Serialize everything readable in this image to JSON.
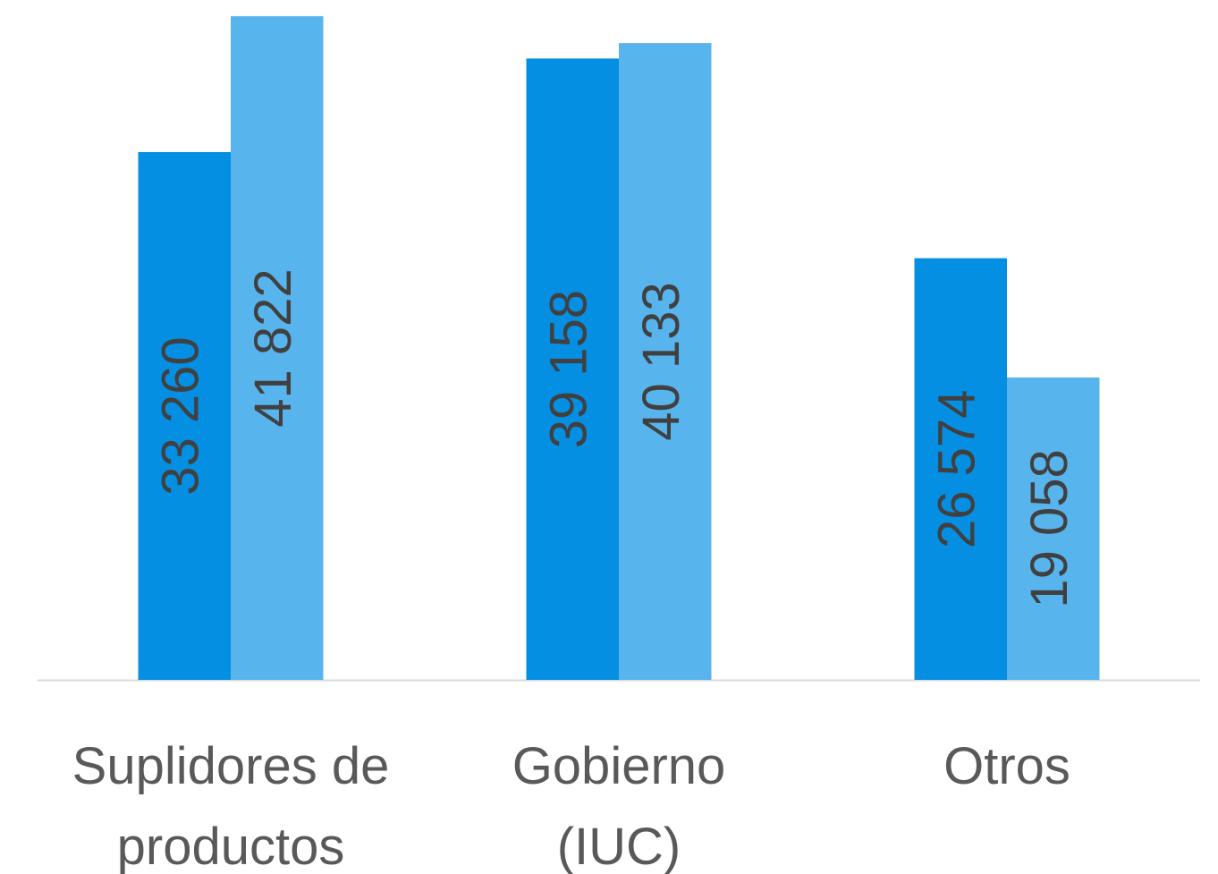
{
  "chart_data": {
    "type": "bar",
    "categories": [
      "Suplidores de productos",
      "Gobierno (IUC)",
      "Otros"
    ],
    "series": [
      {
        "color": "#058fe3",
        "values": [
          33260,
          39158,
          26574
        ],
        "value_labels": [
          "33 260",
          "39 158",
          "26 574"
        ]
      },
      {
        "color": "#58b4ec",
        "values": [
          41822,
          40133,
          19058
        ],
        "value_labels": [
          "41 822",
          "40 133",
          "19 058"
        ]
      }
    ],
    "ylim": [
      0,
      42000
    ]
  }
}
